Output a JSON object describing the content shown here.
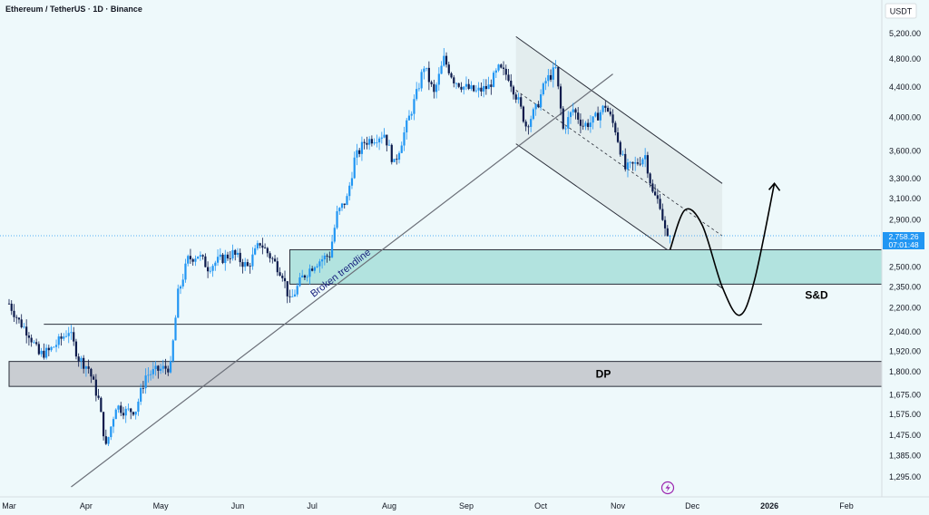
{
  "chart_data": {
    "type": "candlestick",
    "title": "Ethereum / TetherUS · 1D · Binance",
    "currency": "USDT",
    "y_axis": {
      "scale": "log",
      "range": [
        1230,
        5600
      ],
      "ticks": [
        "5,200.00",
        "4,800.00",
        "4,400.00",
        "4,000.00",
        "3,600.00",
        "3,300.00",
        "3,100.00",
        "2,900.00",
        "2,700.00",
        "2,500.00",
        "2,350.00",
        "2,200.00",
        "2,040.00",
        "1,920.00",
        "1,800.00",
        "1,675.00",
        "1,575.00",
        "1,475.00",
        "1,385.00",
        "1,295.00"
      ]
    },
    "x_axis": {
      "labels": [
        {
          "text": "Mar",
          "date": "2025-03-01"
        },
        {
          "text": "Apr",
          "date": "2025-04-01"
        },
        {
          "text": "May",
          "date": "2025-05-01"
        },
        {
          "text": "Jun",
          "date": "2025-06-01"
        },
        {
          "text": "Jul",
          "date": "2025-07-01"
        },
        {
          "text": "Aug",
          "date": "2025-08-01"
        },
        {
          "text": "Sep",
          "date": "2025-09-01"
        },
        {
          "text": "Oct",
          "date": "2025-10-01"
        },
        {
          "text": "Nov",
          "date": "2025-11-01"
        },
        {
          "text": "Dec",
          "date": "2025-12-01"
        },
        {
          "text": "2026",
          "date": "2026-01-01",
          "bold": true
        },
        {
          "text": "Feb",
          "date": "2026-02-01"
        }
      ]
    },
    "colors": {
      "up": "#2196f3",
      "down": "#0d1b4c",
      "sd_zone": "#b2e3df",
      "dp_zone": "#c9cdd2",
      "channel": "#dfe8ea",
      "price_label": "#2196f3",
      "flash_icon": "#9c27b0"
    },
    "current_price": {
      "value": 2758.26,
      "text": "2,758.26",
      "countdown": "07:01:48"
    },
    "price_path": [
      {
        "date": "2025-03-01",
        "price": 2230
      },
      {
        "date": "2025-03-05",
        "price": 2110
      },
      {
        "date": "2025-03-09",
        "price": 2030
      },
      {
        "date": "2025-03-13",
        "price": 1900
      },
      {
        "date": "2025-03-17",
        "price": 1920
      },
      {
        "date": "2025-03-21",
        "price": 1980
      },
      {
        "date": "2025-03-25",
        "price": 2050
      },
      {
        "date": "2025-03-29",
        "price": 1880
      },
      {
        "date": "2025-04-02",
        "price": 1820
      },
      {
        "date": "2025-04-06",
        "price": 1650
      },
      {
        "date": "2025-04-09",
        "price": 1420
      },
      {
        "date": "2025-04-13",
        "price": 1620
      },
      {
        "date": "2025-04-17",
        "price": 1590
      },
      {
        "date": "2025-04-21",
        "price": 1600
      },
      {
        "date": "2025-04-25",
        "price": 1780
      },
      {
        "date": "2025-04-30",
        "price": 1810
      },
      {
        "date": "2025-05-05",
        "price": 1830
      },
      {
        "date": "2025-05-08",
        "price": 2300
      },
      {
        "date": "2025-05-12",
        "price": 2560
      },
      {
        "date": "2025-05-16",
        "price": 2600
      },
      {
        "date": "2025-05-20",
        "price": 2500
      },
      {
        "date": "2025-05-25",
        "price": 2560
      },
      {
        "date": "2025-05-30",
        "price": 2610
      },
      {
        "date": "2025-06-05",
        "price": 2500
      },
      {
        "date": "2025-06-10",
        "price": 2700
      },
      {
        "date": "2025-06-15",
        "price": 2560
      },
      {
        "date": "2025-06-19",
        "price": 2450
      },
      {
        "date": "2025-06-22",
        "price": 2240
      },
      {
        "date": "2025-06-27",
        "price": 2420
      },
      {
        "date": "2025-07-02",
        "price": 2530
      },
      {
        "date": "2025-07-08",
        "price": 2600
      },
      {
        "date": "2025-07-11",
        "price": 2950
      },
      {
        "date": "2025-07-15",
        "price": 3100
      },
      {
        "date": "2025-07-18",
        "price": 3500
      },
      {
        "date": "2025-07-22",
        "price": 3700
      },
      {
        "date": "2025-07-26",
        "price": 3750
      },
      {
        "date": "2025-07-30",
        "price": 3800
      },
      {
        "date": "2025-08-03",
        "price": 3450
      },
      {
        "date": "2025-08-08",
        "price": 3900
      },
      {
        "date": "2025-08-12",
        "price": 4300
      },
      {
        "date": "2025-08-15",
        "price": 4700
      },
      {
        "date": "2025-08-19",
        "price": 4300
      },
      {
        "date": "2025-08-23",
        "price": 4800
      },
      {
        "date": "2025-08-27",
        "price": 4500
      },
      {
        "date": "2025-08-31",
        "price": 4400
      },
      {
        "date": "2025-09-05",
        "price": 4330
      },
      {
        "date": "2025-09-10",
        "price": 4400
      },
      {
        "date": "2025-09-14",
        "price": 4650
      },
      {
        "date": "2025-09-18",
        "price": 4550
      },
      {
        "date": "2025-09-22",
        "price": 4200
      },
      {
        "date": "2025-09-25",
        "price": 3900
      },
      {
        "date": "2025-09-29",
        "price": 4100
      },
      {
        "date": "2025-10-03",
        "price": 4480
      },
      {
        "date": "2025-10-07",
        "price": 4650
      },
      {
        "date": "2025-10-10",
        "price": 3850
      },
      {
        "date": "2025-10-14",
        "price": 4100
      },
      {
        "date": "2025-10-18",
        "price": 3900
      },
      {
        "date": "2025-10-22",
        "price": 3950
      },
      {
        "date": "2025-10-27",
        "price": 4150
      },
      {
        "date": "2025-10-31",
        "price": 3850
      },
      {
        "date": "2025-11-04",
        "price": 3400
      },
      {
        "date": "2025-11-08",
        "price": 3450
      },
      {
        "date": "2025-11-12",
        "price": 3550
      },
      {
        "date": "2025-11-15",
        "price": 3150
      },
      {
        "date": "2025-11-18",
        "price": 3050
      },
      {
        "date": "2025-11-20",
        "price": 2800
      },
      {
        "date": "2025-11-21",
        "price": 2720
      },
      {
        "date": "2025-11-22",
        "price": 2758
      }
    ],
    "zones": [
      {
        "name": "S&D",
        "label": "S&D",
        "from": 2370,
        "to": 2640,
        "start_date": "2025-06-22",
        "color": "sd_zone"
      },
      {
        "name": "DP",
        "label": "DP",
        "from": 1720,
        "to": 1860,
        "start_date": "2025-03-01",
        "color": "dp_zone"
      }
    ],
    "horizontal_lines": [
      {
        "price": 2090,
        "from_date": "2025-03-15",
        "to_date": "2025-12-29"
      }
    ],
    "trendline": {
      "label": "Broken trendline",
      "from": {
        "date": "2025-03-26",
        "price": 1255
      },
      "to": {
        "date": "2025-10-30",
        "price": 4580
      }
    },
    "channel": {
      "upper": [
        {
          "date": "2025-09-21",
          "price": 5150
        },
        {
          "date": "2025-12-13",
          "price": 3250
        }
      ],
      "lower": [
        {
          "date": "2025-09-21",
          "price": 3680
        },
        {
          "date": "2025-12-13",
          "price": 2340
        }
      ]
    },
    "projection": [
      {
        "date": "2025-11-22",
        "price": 2640
      },
      {
        "date": "2025-11-28",
        "price": 2990
      },
      {
        "date": "2025-12-05",
        "price": 2850
      },
      {
        "date": "2025-12-13",
        "price": 2350
      },
      {
        "date": "2025-12-20",
        "price": 2150
      },
      {
        "date": "2025-12-26",
        "price": 2400
      },
      {
        "date": "2026-01-03",
        "price": 3250
      }
    ]
  }
}
